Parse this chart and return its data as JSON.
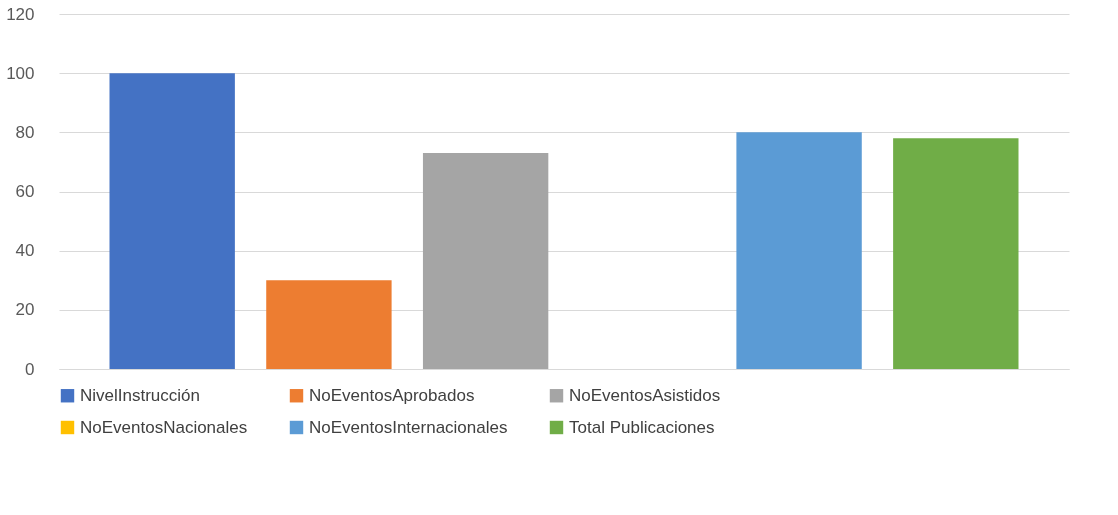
{
  "chart_data": {
    "type": "bar",
    "categories": [
      null
    ],
    "series": [
      {
        "name": "NivelInstrucción",
        "color": "#4472c4",
        "values": [
          100
        ]
      },
      {
        "name": "NoEventosAprobados",
        "color": "#ed7d31",
        "values": [
          30
        ]
      },
      {
        "name": "NoEventosAsistidos",
        "color": "#a5a5a5",
        "values": [
          73
        ]
      },
      {
        "name": "NoEventosNacionales",
        "color": "#ffc000",
        "values": [
          0
        ]
      },
      {
        "name": "NoEventosInternacionales",
        "color": "#5b9bd5",
        "values": [
          80
        ]
      },
      {
        "name": "Total Publicaciones",
        "color": "#70ad47",
        "values": [
          78
        ]
      }
    ],
    "ylim": [
      0,
      120
    ],
    "yticks": [
      0,
      20,
      40,
      60,
      80,
      100,
      120
    ],
    "grid": "y",
    "legend": "bottom",
    "tick_labels": "y"
  }
}
